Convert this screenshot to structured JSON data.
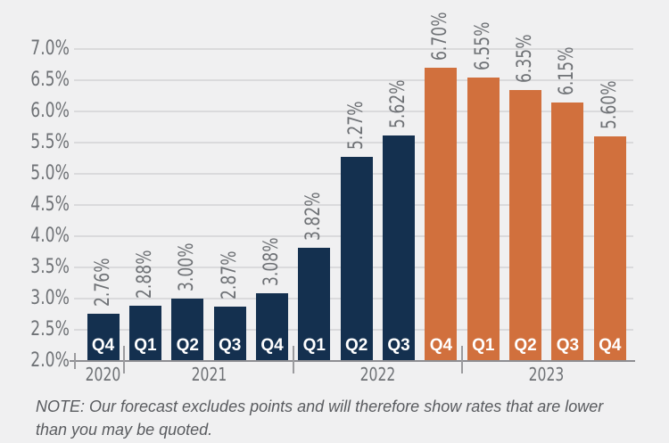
{
  "chart_data": {
    "type": "bar",
    "title": "",
    "xlabel": "",
    "ylabel": "",
    "unit": "%",
    "ylim": [
      2.0,
      7.0
    ],
    "ytick_step": 0.5,
    "ytick_labels": [
      "2.0%",
      "2.5%",
      "3.0%",
      "3.5%",
      "4.0%",
      "4.5%",
      "5.0%",
      "5.5%",
      "6.0%",
      "6.5%",
      "7.0%"
    ],
    "grid": true,
    "legend": false,
    "value_labels_rotated": true,
    "bars": [
      {
        "quarter": "Q4",
        "year": "2020",
        "value": 2.76,
        "label": "2.76%",
        "series": "actual"
      },
      {
        "quarter": "Q1",
        "year": "2021",
        "value": 2.88,
        "label": "2.88%",
        "series": "actual"
      },
      {
        "quarter": "Q2",
        "year": "2021",
        "value": 3.0,
        "label": "3.00%",
        "series": "actual"
      },
      {
        "quarter": "Q3",
        "year": "2021",
        "value": 2.87,
        "label": "2.87%",
        "series": "actual"
      },
      {
        "quarter": "Q4",
        "year": "2021",
        "value": 3.08,
        "label": "3.08%",
        "series": "actual"
      },
      {
        "quarter": "Q1",
        "year": "2022",
        "value": 3.82,
        "label": "3.82%",
        "series": "actual"
      },
      {
        "quarter": "Q2",
        "year": "2022",
        "value": 5.27,
        "label": "5.27%",
        "series": "actual"
      },
      {
        "quarter": "Q3",
        "year": "2022",
        "value": 5.62,
        "label": "5.62%",
        "series": "actual"
      },
      {
        "quarter": "Q4",
        "year": "2022",
        "value": 6.7,
        "label": "6.70%",
        "series": "forecast"
      },
      {
        "quarter": "Q1",
        "year": "2023",
        "value": 6.55,
        "label": "6.55%",
        "series": "forecast"
      },
      {
        "quarter": "Q2",
        "year": "2023",
        "value": 6.35,
        "label": "6.35%",
        "series": "forecast"
      },
      {
        "quarter": "Q3",
        "year": "2023",
        "value": 6.15,
        "label": "6.15%",
        "series": "forecast"
      },
      {
        "quarter": "Q4",
        "year": "2023",
        "value": 5.6,
        "label": "5.60%",
        "series": "forecast"
      }
    ],
    "year_groups": [
      {
        "label": "2020",
        "count": 1
      },
      {
        "label": "2021",
        "count": 4
      },
      {
        "label": "2022",
        "count": 4
      },
      {
        "label": "2023",
        "count": 4
      }
    ],
    "series_colors": {
      "actual": "#14304F",
      "forecast": "#D1703D"
    }
  },
  "colors": {
    "background": "#F0F0F1",
    "gridline": "#DADADC",
    "axis": "#8E8E92",
    "tick": "#9B9B9E",
    "label_gray": "#6E7175",
    "note_gray": "#595B5F",
    "bar_text": "#FFFFFF"
  },
  "note": {
    "lines": [
      "NOTE: Our forecast excludes points and will therefore show rates that are lower",
      "than you may be quoted."
    ]
  }
}
